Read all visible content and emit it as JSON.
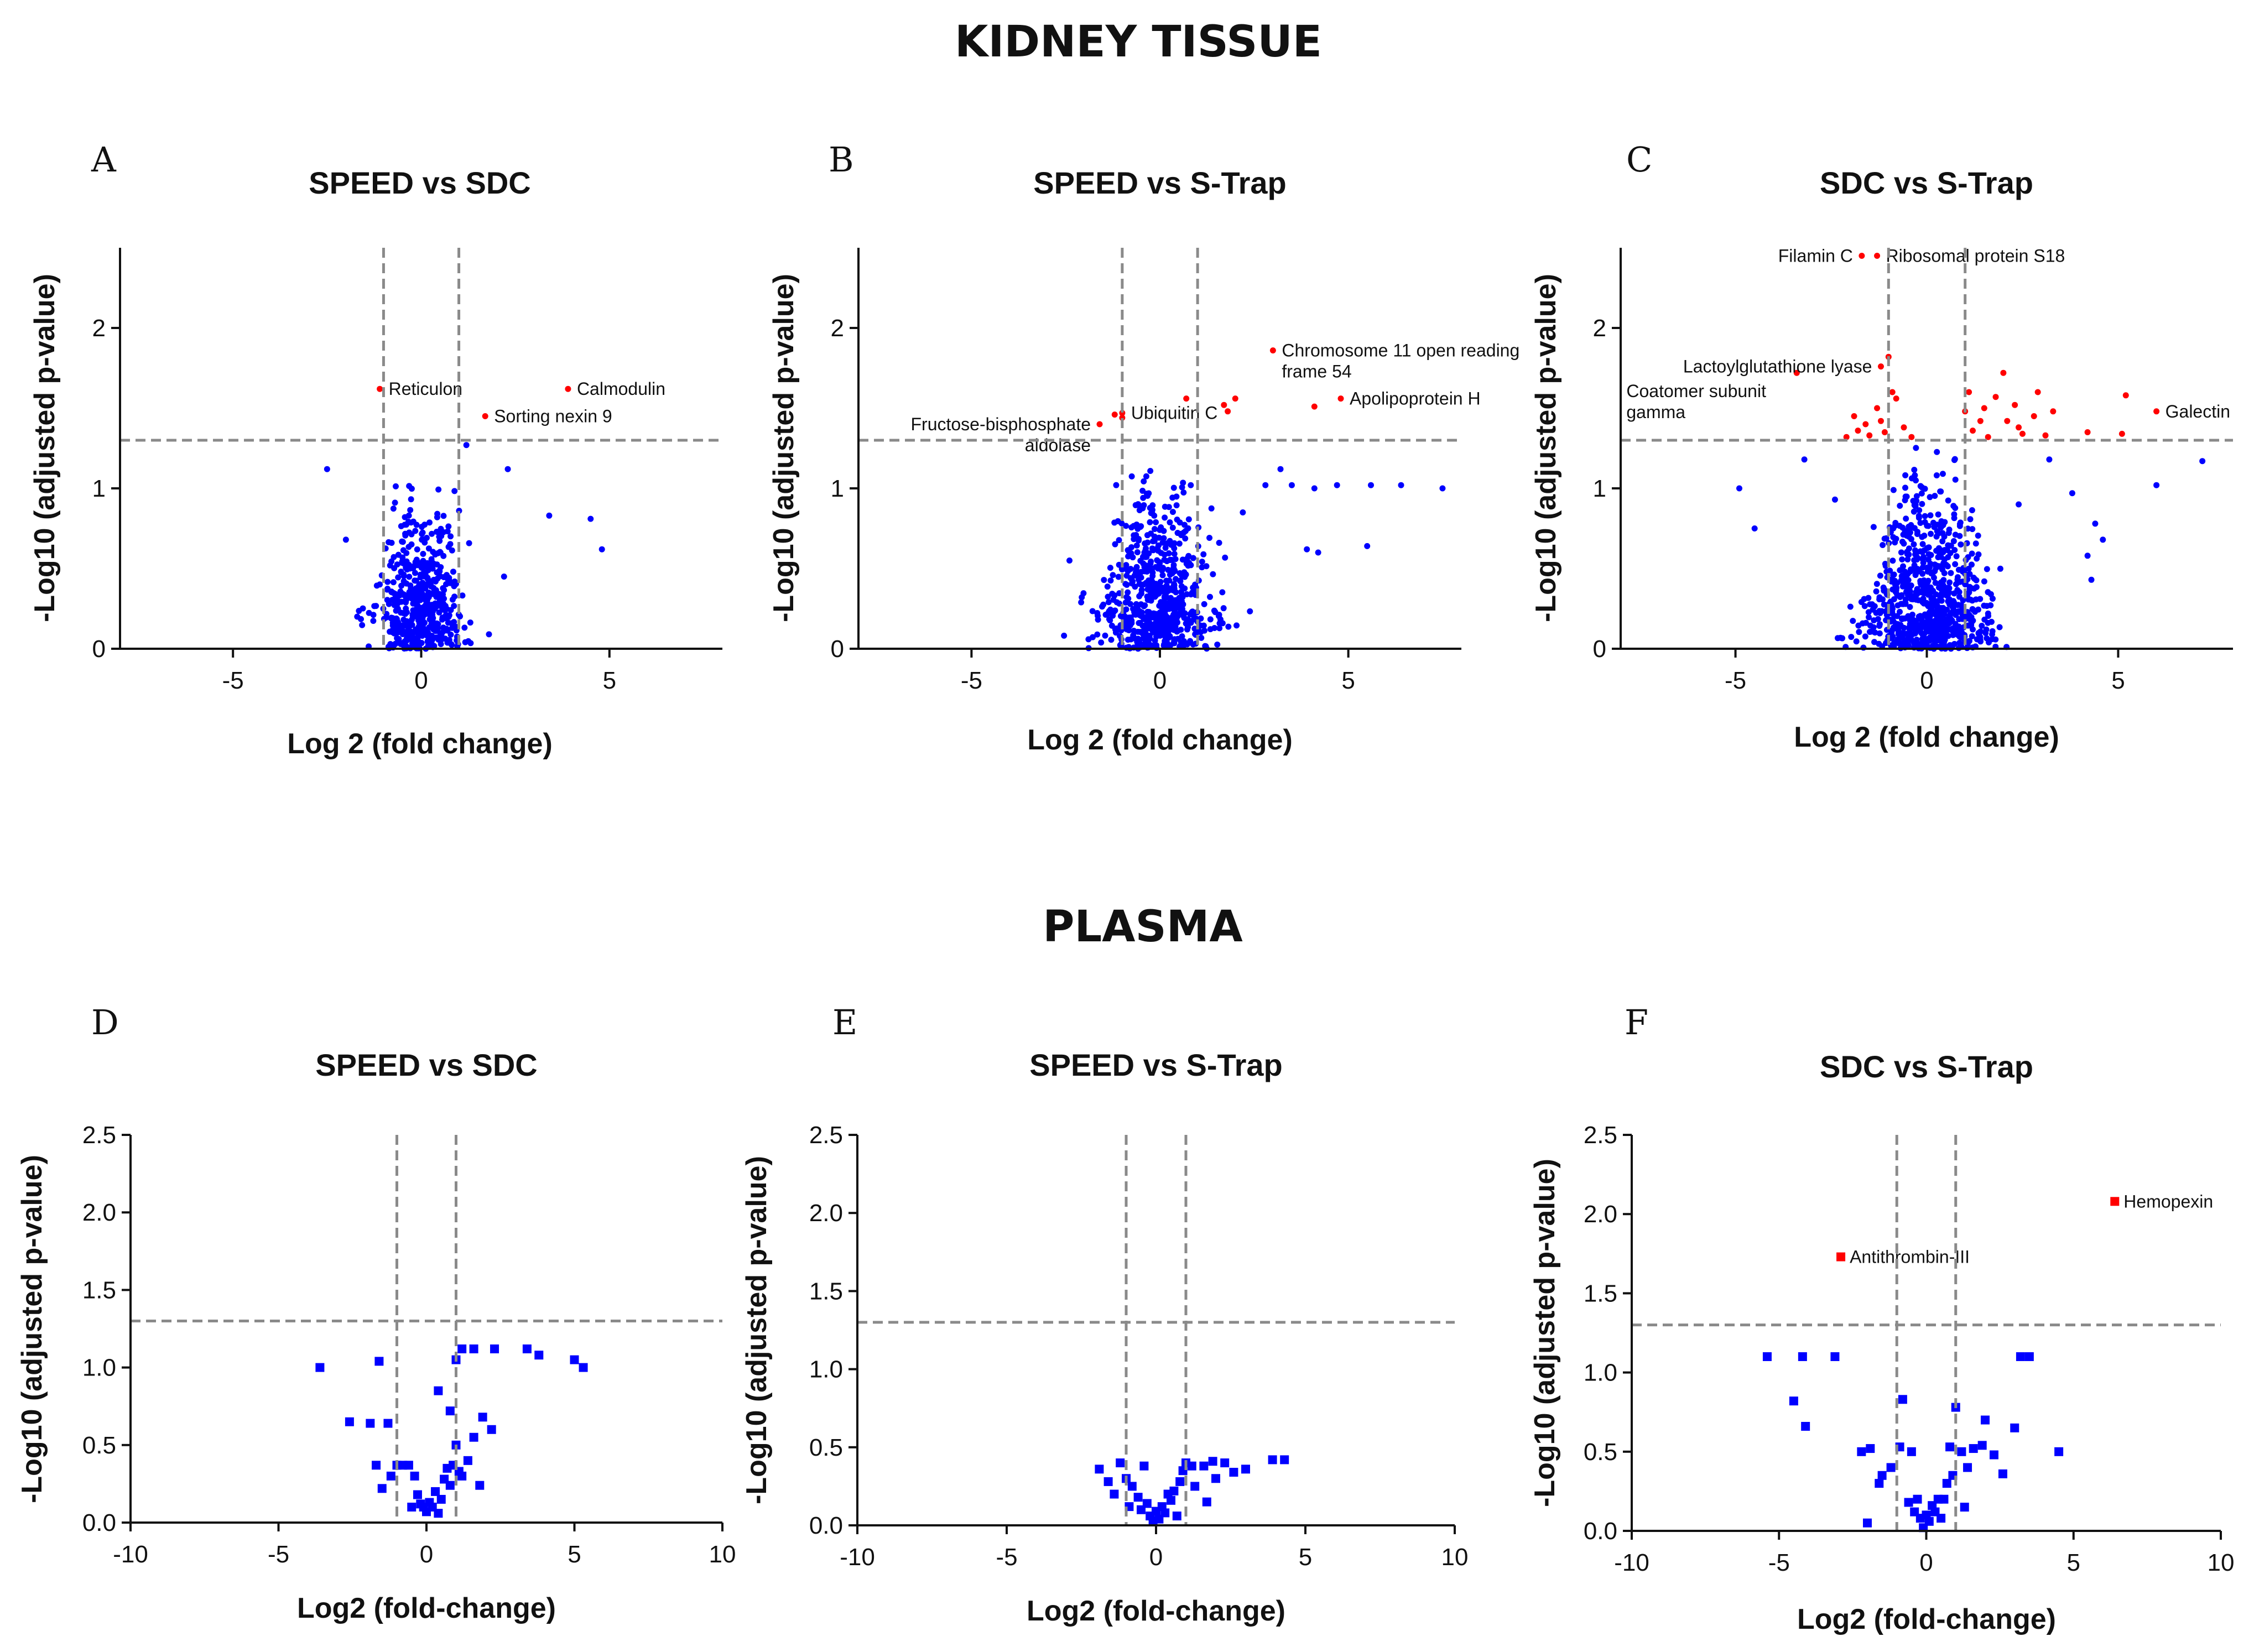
{
  "sections": {
    "kidney": "KIDNEY TISSUE",
    "plasma": "PLASMA"
  },
  "colors": {
    "non_significant": "#0000ff",
    "significant": "#ff0000",
    "threshold": "#8a8a8a",
    "axis": "#111111"
  },
  "chart_data": [
    {
      "id": "A",
      "letter": "A",
      "type": "scatter",
      "title": "SPEED vs SDC",
      "xlabel": "Log 2 (fold change)",
      "ylabel": "-Log10 (adjusted p-value)",
      "xlim": [
        -8,
        8
      ],
      "ylim": [
        0,
        2.5
      ],
      "xticks": [
        -5,
        0,
        5
      ],
      "xtick_labels": [
        "-5",
        "0",
        "5"
      ],
      "yticks": [
        0,
        1,
        2
      ],
      "ytick_labels": [
        "0",
        "1",
        "2"
      ],
      "thresholds": {
        "fc": 1,
        "p": 1.3
      },
      "point_shape": "circle",
      "labeled_points": [
        {
          "label": "Reticulon",
          "x": -1.1,
          "y": 1.62
        },
        {
          "label": "Calmodulin",
          "x": 3.9,
          "y": 1.62
        },
        {
          "label": "Sorting nexin 9",
          "x": 1.7,
          "y": 1.45
        }
      ],
      "nonsig_seed": 11,
      "nonsig_count": 520,
      "nonsig_spread": [
        0.55,
        0.55
      ],
      "nonsig_ymax": 1.02,
      "nonsig_extra": [
        [
          -2.5,
          1.12
        ],
        [
          2.3,
          1.12
        ],
        [
          3.4,
          0.83
        ],
        [
          4.5,
          0.81
        ],
        [
          4.8,
          0.62
        ],
        [
          2.2,
          0.45
        ],
        [
          -2.0,
          0.68
        ],
        [
          1.8,
          0.09
        ],
        [
          -1.7,
          0.2
        ],
        [
          1.2,
          1.27
        ]
      ],
      "sig_extra": []
    },
    {
      "id": "B",
      "letter": "B",
      "type": "scatter",
      "title": "SPEED vs S-Trap",
      "xlabel": "Log 2 (fold change)",
      "ylabel": "-Log10 (adjusted p-value)",
      "xlim": [
        -8,
        8
      ],
      "ylim": [
        0,
        2.5
      ],
      "xticks": [
        -5,
        0,
        5
      ],
      "xtick_labels": [
        "-5",
        "0",
        "5"
      ],
      "yticks": [
        0,
        1,
        2
      ],
      "ytick_labels": [
        "0",
        "1",
        "2"
      ],
      "thresholds": {
        "fc": 1,
        "p": 1.3
      },
      "point_shape": "circle",
      "labeled_points": [
        {
          "label": "Fructose-bisphosphate",
          "label2": "aldolase",
          "x": -1.6,
          "y": 1.4,
          "anchor": "end"
        },
        {
          "label": "Ubiquitin C",
          "x": -1.0,
          "y": 1.47
        },
        {
          "label": "Chromosome 11 open reading",
          "label2": "frame 54",
          "x": 3.0,
          "y": 1.86
        },
        {
          "label": "Apolipoprotein H",
          "x": 4.8,
          "y": 1.56
        }
      ],
      "nonsig_seed": 23,
      "nonsig_count": 650,
      "nonsig_spread": [
        0.7,
        0.55
      ],
      "nonsig_ymax": 1.12,
      "nonsig_extra": [
        [
          2.8,
          1.02
        ],
        [
          3.5,
          1.02
        ],
        [
          4.1,
          1.0
        ],
        [
          4.7,
          1.02
        ],
        [
          5.6,
          1.02
        ],
        [
          6.4,
          1.02
        ],
        [
          7.5,
          1.0
        ],
        [
          3.9,
          0.62
        ],
        [
          4.2,
          0.6
        ],
        [
          5.5,
          0.64
        ],
        [
          2.2,
          0.85
        ],
        [
          -2.4,
          0.55
        ],
        [
          3.2,
          1.12
        ]
      ],
      "sig_extra": [
        [
          -1.2,
          1.46
        ],
        [
          -1.0,
          1.44
        ],
        [
          0.7,
          1.56
        ],
        [
          1.7,
          1.52
        ],
        [
          2.0,
          1.56
        ],
        [
          1.8,
          1.48
        ],
        [
          4.1,
          1.51
        ]
      ]
    },
    {
      "id": "C",
      "letter": "C",
      "type": "scatter",
      "title": "SDC vs S-Trap",
      "xlabel": "Log 2 (fold change)",
      "ylabel": "-Log10 (adjusted p-value)",
      "xlim": [
        -8,
        8
      ],
      "ylim": [
        0,
        2.5
      ],
      "xticks": [
        -5,
        0,
        5
      ],
      "xtick_labels": [
        "-5",
        "0",
        "5"
      ],
      "yticks": [
        0,
        1,
        2
      ],
      "ytick_labels": [
        "0",
        "1",
        "2"
      ],
      "thresholds": {
        "fc": 1,
        "p": 1.3
      },
      "point_shape": "circle",
      "labeled_points": [
        {
          "label": "Filamin C",
          "x": -1.7,
          "y": 2.45,
          "anchor": "end"
        },
        {
          "label": "Ribosomal protein S18",
          "x": -1.3,
          "y": 2.45
        },
        {
          "label": "Lactoylglutathione lyase",
          "x": -1.2,
          "y": 1.76,
          "anchor": "end"
        },
        {
          "label": "Coatomer subunit",
          "label2": "gamma",
          "x": -3.4,
          "y": 1.72,
          "anchor": "end",
          "label_x": -7.85,
          "label_y": 1.5
        },
        {
          "label": "Galectin",
          "x": 6.0,
          "y": 1.48
        }
      ],
      "nonsig_seed": 37,
      "nonsig_count": 800,
      "nonsig_spread": [
        0.75,
        0.55
      ],
      "nonsig_ymax": 1.28,
      "nonsig_extra": [
        [
          -4.9,
          1.0
        ],
        [
          -4.5,
          0.75
        ],
        [
          -3.2,
          1.18
        ],
        [
          3.2,
          1.18
        ],
        [
          3.8,
          0.97
        ],
        [
          4.2,
          0.58
        ],
        [
          4.4,
          0.78
        ],
        [
          4.6,
          0.68
        ],
        [
          4.3,
          0.43
        ],
        [
          6.0,
          1.02
        ],
        [
          7.2,
          1.17
        ],
        [
          -2.4,
          0.93
        ],
        [
          2.4,
          0.9
        ]
      ],
      "sig_extra": [
        [
          -1.0,
          1.82
        ],
        [
          -0.9,
          1.6
        ],
        [
          -1.3,
          1.5
        ],
        [
          -1.6,
          1.4
        ],
        [
          -2.1,
          1.32
        ],
        [
          -1.8,
          1.36
        ],
        [
          -1.2,
          1.42
        ],
        [
          -0.6,
          1.38
        ],
        [
          -0.4,
          1.32
        ],
        [
          -1.1,
          1.35
        ],
        [
          -1.5,
          1.33
        ],
        [
          -1.9,
          1.45
        ],
        [
          -0.8,
          1.56
        ],
        [
          1.1,
          1.6
        ],
        [
          1.0,
          1.48
        ],
        [
          1.2,
          1.36
        ],
        [
          1.5,
          1.5
        ],
        [
          1.8,
          1.57
        ],
        [
          2.0,
          1.72
        ],
        [
          2.1,
          1.42
        ],
        [
          2.3,
          1.52
        ],
        [
          2.5,
          1.34
        ],
        [
          2.8,
          1.45
        ],
        [
          2.9,
          1.6
        ],
        [
          3.3,
          1.48
        ],
        [
          3.1,
          1.33
        ],
        [
          1.6,
          1.32
        ],
        [
          2.4,
          1.38
        ],
        [
          5.2,
          1.58
        ],
        [
          5.1,
          1.34
        ],
        [
          4.2,
          1.35
        ],
        [
          1.4,
          1.42
        ]
      ]
    },
    {
      "id": "D",
      "letter": "D",
      "type": "scatter",
      "title": "SPEED vs SDC",
      "xlabel": "Log2 (fold-change)",
      "ylabel": "-Log10 (adjusted p-value)",
      "xlim": [
        -10,
        10
      ],
      "ylim": [
        0,
        2.5
      ],
      "xticks": [
        -10,
        -5,
        0,
        5,
        10
      ],
      "xtick_labels": [
        "-10",
        "-5",
        "0",
        "5",
        "10"
      ],
      "yticks": [
        0,
        0.5,
        1.0,
        1.5,
        2.0,
        2.5
      ],
      "ytick_labels": [
        "0.0",
        "0.5",
        "1.0",
        "1.5",
        "2.0",
        "2.5"
      ],
      "thresholds": {
        "fc": 1,
        "p": 1.3
      },
      "point_shape": "square",
      "labeled_points": [],
      "points": [
        [
          -3.6,
          1.0
        ],
        [
          -1.6,
          1.04
        ],
        [
          -2.6,
          0.65
        ],
        [
          -1.9,
          0.64
        ],
        [
          -1.3,
          0.64
        ],
        [
          -1.7,
          0.37
        ],
        [
          -1.5,
          0.22
        ],
        [
          -1.2,
          0.3
        ],
        [
          -1.0,
          0.37
        ],
        [
          -0.8,
          0.37
        ],
        [
          -0.6,
          0.37
        ],
        [
          -0.4,
          0.3
        ],
        [
          -0.3,
          0.18
        ],
        [
          -0.2,
          0.12
        ],
        [
          -0.1,
          0.1
        ],
        [
          0.0,
          0.07
        ],
        [
          0.1,
          0.13
        ],
        [
          0.2,
          0.1
        ],
        [
          0.4,
          0.06
        ],
        [
          0.5,
          0.15
        ],
        [
          0.6,
          0.28
        ],
        [
          0.7,
          0.35
        ],
        [
          0.8,
          0.24
        ],
        [
          0.9,
          0.37
        ],
        [
          1.0,
          0.5
        ],
        [
          1.1,
          0.33
        ],
        [
          1.2,
          0.3
        ],
        [
          0.8,
          0.72
        ],
        [
          0.4,
          0.85
        ],
        [
          1.0,
          1.05
        ],
        [
          1.2,
          1.12
        ],
        [
          1.6,
          1.12
        ],
        [
          2.3,
          1.12
        ],
        [
          3.4,
          1.12
        ],
        [
          3.8,
          1.08
        ],
        [
          5.0,
          1.05
        ],
        [
          5.3,
          1.0
        ],
        [
          1.6,
          0.55
        ],
        [
          1.8,
          0.24
        ],
        [
          2.2,
          0.6
        ],
        [
          1.4,
          0.4
        ],
        [
          0.3,
          0.2
        ],
        [
          -0.5,
          0.1
        ],
        [
          1.9,
          0.68
        ]
      ]
    },
    {
      "id": "E",
      "letter": "E",
      "type": "scatter",
      "title": "SPEED vs S-Trap",
      "xlabel": "Log2 (fold-change)",
      "ylabel": "-Log10 (adjusted p-value)",
      "xlim": [
        -10,
        10
      ],
      "ylim": [
        0,
        2.5
      ],
      "xticks": [
        -10,
        -5,
        0,
        5,
        10
      ],
      "xtick_labels": [
        "-10",
        "-5",
        "0",
        "5",
        "10"
      ],
      "yticks": [
        0,
        0.5,
        1.0,
        1.5,
        2.0,
        2.5
      ],
      "ytick_labels": [
        "0.0",
        "0.5",
        "1.0",
        "1.5",
        "2.0",
        "2.5"
      ],
      "thresholds": {
        "fc": 1,
        "p": 1.3
      },
      "point_shape": "square",
      "labeled_points": [],
      "points": [
        [
          -1.9,
          0.36
        ],
        [
          -1.6,
          0.28
        ],
        [
          -1.2,
          0.4
        ],
        [
          -1.0,
          0.3
        ],
        [
          -0.8,
          0.25
        ],
        [
          -0.6,
          0.18
        ],
        [
          -0.5,
          0.1
        ],
        [
          -0.3,
          0.14
        ],
        [
          -0.2,
          0.06
        ],
        [
          -0.1,
          0.03
        ],
        [
          0.0,
          0.09
        ],
        [
          0.1,
          0.04
        ],
        [
          0.2,
          0.12
        ],
        [
          0.3,
          0.08
        ],
        [
          0.5,
          0.16
        ],
        [
          0.6,
          0.22
        ],
        [
          0.8,
          0.28
        ],
        [
          0.9,
          0.35
        ],
        [
          1.0,
          0.4
        ],
        [
          1.2,
          0.38
        ],
        [
          1.6,
          0.38
        ],
        [
          1.9,
          0.41
        ],
        [
          2.3,
          0.4
        ],
        [
          2.6,
          0.34
        ],
        [
          3.0,
          0.36
        ],
        [
          3.9,
          0.42
        ],
        [
          4.3,
          0.42
        ],
        [
          1.7,
          0.15
        ],
        [
          -0.9,
          0.12
        ],
        [
          0.4,
          0.2
        ],
        [
          -1.4,
          0.2
        ],
        [
          1.3,
          0.25
        ],
        [
          2.0,
          0.3
        ],
        [
          -0.4,
          0.38
        ],
        [
          0.7,
          0.06
        ]
      ]
    },
    {
      "id": "F",
      "letter": "F",
      "type": "scatter",
      "title": "SDC vs S-Trap",
      "xlabel": "Log2 (fold-change)",
      "ylabel": "-Log10 (adjusted p-value)",
      "xlim": [
        -10,
        10
      ],
      "ylim": [
        0,
        2.5
      ],
      "xticks": [
        -10,
        -5,
        0,
        5,
        10
      ],
      "xtick_labels": [
        "-10",
        "-5",
        "0",
        "5",
        "10"
      ],
      "yticks": [
        0,
        0.5,
        1.0,
        1.5,
        2.0,
        2.5
      ],
      "ytick_labels": [
        "0.0",
        "0.5",
        "1.0",
        "1.5",
        "2.0",
        "2.5"
      ],
      "thresholds": {
        "fc": 1,
        "p": 1.3
      },
      "point_shape": "square",
      "labeled_points": [
        {
          "label": "Hemopexin",
          "x": 6.4,
          "y": 2.08
        },
        {
          "label": "Antithrombin-III",
          "x": -2.9,
          "y": 1.73
        }
      ],
      "points": [
        [
          -5.4,
          1.1
        ],
        [
          -4.2,
          1.1
        ],
        [
          -3.1,
          1.1
        ],
        [
          -4.5,
          0.82
        ],
        [
          -4.1,
          0.66
        ],
        [
          -2.2,
          0.5
        ],
        [
          -1.9,
          0.52
        ],
        [
          -1.5,
          0.35
        ],
        [
          -1.2,
          0.4
        ],
        [
          -0.9,
          0.53
        ],
        [
          -0.8,
          0.83
        ],
        [
          -0.6,
          0.18
        ],
        [
          -0.4,
          0.12
        ],
        [
          -0.3,
          0.2
        ],
        [
          -0.2,
          0.08
        ],
        [
          -0.1,
          0.02
        ],
        [
          0.0,
          0.1
        ],
        [
          0.1,
          0.06
        ],
        [
          0.2,
          0.16
        ],
        [
          0.3,
          0.12
        ],
        [
          0.4,
          0.2
        ],
        [
          0.5,
          0.08
        ],
        [
          0.6,
          0.2
        ],
        [
          0.7,
          0.3
        ],
        [
          0.8,
          0.53
        ],
        [
          0.9,
          0.35
        ],
        [
          1.0,
          0.78
        ],
        [
          1.2,
          0.5
        ],
        [
          1.4,
          0.4
        ],
        [
          1.6,
          0.52
        ],
        [
          1.9,
          0.54
        ],
        [
          2.0,
          0.7
        ],
        [
          2.3,
          0.48
        ],
        [
          2.6,
          0.36
        ],
        [
          3.0,
          0.65
        ],
        [
          3.2,
          1.1
        ],
        [
          3.5,
          1.1
        ],
        [
          4.5,
          0.5
        ],
        [
          -2.0,
          0.05
        ],
        [
          -1.6,
          0.3
        ],
        [
          -0.5,
          0.5
        ],
        [
          1.3,
          0.15
        ]
      ]
    }
  ]
}
